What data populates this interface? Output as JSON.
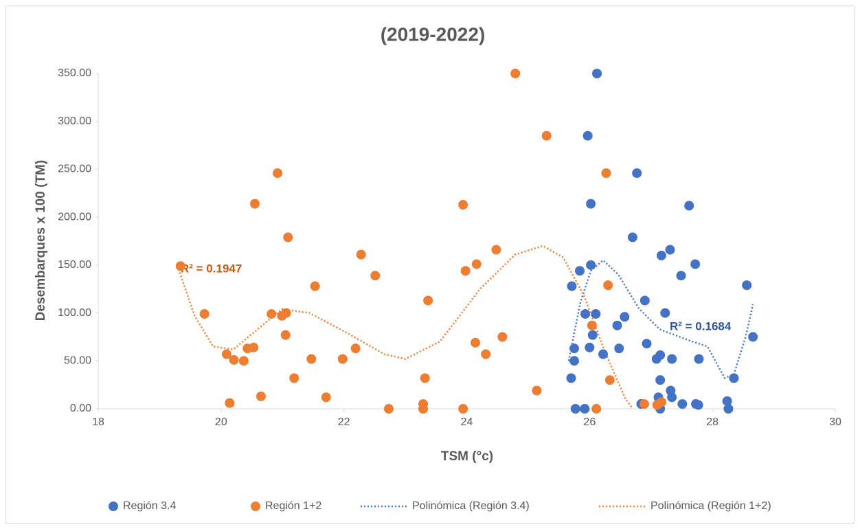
{
  "chart_data": {
    "type": "scatter",
    "title": "(2019-2022)",
    "x_label": "TSM (°c)",
    "y_label": "Desembarques x 100 (TM)",
    "xlim": [
      18,
      30
    ],
    "xticks": [
      18,
      20,
      22,
      24,
      26,
      28,
      30
    ],
    "ylim": [
      0,
      350
    ],
    "yticks": [
      {
        "value": 0,
        "label": "0.00"
      },
      {
        "value": 50,
        "label": "50.00"
      },
      {
        "value": 100,
        "label": "100.00"
      },
      {
        "value": 150,
        "label": "150.00"
      },
      {
        "value": 200,
        "label": "200.00"
      },
      {
        "value": 250,
        "label": "250.00"
      },
      {
        "value": 300,
        "label": "300.00"
      },
      {
        "value": 350,
        "label": "350.00"
      }
    ],
    "grid": false,
    "legend": "bottom",
    "series": [
      {
        "name": "Región 3.4",
        "color": "#4472c4",
        "x": [
          25.75,
          25.75,
          25.7,
          25.71,
          25.77,
          25.92,
          25.84,
          25.93,
          25.97,
          26.0,
          26.02,
          26.02,
          26.05,
          26.1,
          26.12,
          26.22,
          26.45,
          26.48,
          26.57,
          26.7,
          26.77,
          26.84,
          26.9,
          26.93,
          27.09,
          27.15,
          27.15,
          27.12,
          27.15,
          27.17,
          27.23,
          27.31,
          27.32,
          27.34,
          27.34,
          27.49,
          27.51,
          27.62,
          27.72,
          27.73,
          27.77,
          27.78,
          28.24,
          28.26,
          28.35,
          28.56,
          28.66
        ],
        "values": [
          63,
          50,
          32,
          128,
          0,
          0,
          144,
          99,
          285,
          64,
          150,
          214,
          77,
          99,
          350,
          57,
          87,
          63,
          96,
          179,
          246,
          5,
          113,
          68,
          52,
          56,
          30,
          12,
          0,
          160,
          100,
          166,
          19,
          52,
          12,
          139,
          5,
          212,
          151,
          5,
          4,
          52,
          8,
          0,
          32,
          129,
          75
        ]
      },
      {
        "name": "Región 1+2",
        "color": "#ed7d31",
        "x": [
          19.34,
          19.73,
          20.09,
          20.21,
          20.37,
          20.43,
          20.53,
          20.55,
          20.14,
          20.65,
          20.82,
          20.92,
          20.99,
          21.06,
          21.09,
          21.05,
          21.19,
          21.47,
          21.53,
          21.71,
          21.98,
          22.19,
          22.28,
          22.51,
          22.73,
          23.29,
          23.29,
          23.32,
          23.37,
          23.94,
          23.98,
          23.94,
          24.14,
          24.16,
          24.31,
          24.48,
          24.58,
          24.79,
          25.14,
          25.3,
          26.04,
          26.11,
          26.27,
          26.3,
          26.33,
          26.89,
          27.1,
          27.17
        ],
        "values": [
          149,
          99,
          57,
          51,
          50,
          63,
          64,
          214,
          6,
          13,
          99,
          246,
          97,
          100,
          179,
          77,
          32,
          52,
          128,
          12,
          52,
          63,
          161,
          139,
          0,
          5,
          0,
          32,
          113,
          213,
          144,
          0,
          69,
          151,
          57,
          166,
          75,
          350,
          19,
          285,
          87,
          0,
          246,
          129,
          30,
          5,
          4,
          7
        ]
      }
    ],
    "trendlines": [
      {
        "name": "Polinómica (Región 3.4)",
        "color": "#4472c4",
        "r2_label": "R² = 0.1684",
        "x": [
          25.66,
          25.85,
          26.02,
          26.22,
          26.47,
          26.8,
          27.14,
          27.59,
          27.92,
          28.2,
          28.35,
          28.54,
          28.66
        ],
        "values": [
          50,
          111,
          144,
          155,
          140,
          105,
          83,
          72,
          65,
          32,
          36,
          75,
          109
        ]
      },
      {
        "name": "Polinómica (Región 1+2)",
        "color": "#ed7d31",
        "r2_label": "R² = 0.1947",
        "x": [
          19.29,
          19.57,
          19.87,
          20.2,
          20.65,
          20.99,
          21.44,
          22.0,
          22.66,
          23.0,
          23.56,
          24.23,
          24.79,
          25.24,
          25.57,
          25.91,
          26.24,
          26.58,
          26.69
        ],
        "values": [
          149,
          97,
          65,
          62,
          86,
          104,
          100,
          81,
          57,
          52,
          70,
          126,
          161,
          170,
          158,
          118,
          61,
          11,
          1
        ]
      }
    ]
  }
}
